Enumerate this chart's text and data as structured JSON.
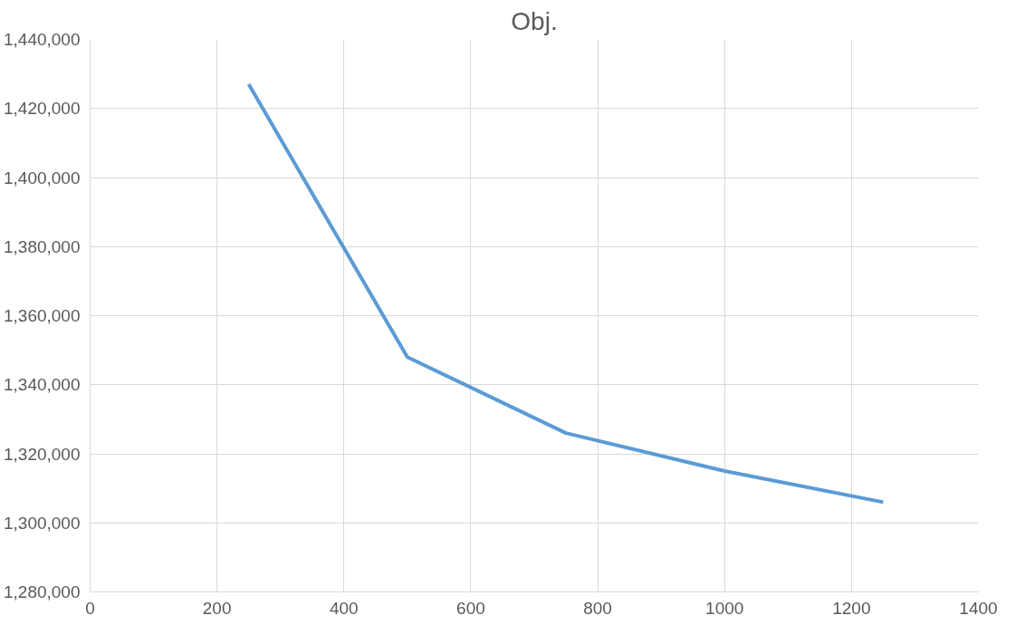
{
  "chart_data": {
    "type": "line",
    "title": "Obj.",
    "x": [
      250,
      500,
      750,
      1000,
      1250
    ],
    "series": [
      {
        "color": "#5b9bd5",
        "values": [
          1427000,
          1348000,
          1326000,
          1315000,
          1306000
        ]
      }
    ],
    "xlim": [
      0,
      1400
    ],
    "xticks": [
      0,
      200,
      400,
      600,
      800,
      1000,
      1200,
      1400
    ],
    "ylim": [
      1280000,
      1440000
    ],
    "yticks": [
      {
        "value": 1280000,
        "label": "1,280,000"
      },
      {
        "value": 1300000,
        "label": "1,300,000"
      },
      {
        "value": 1320000,
        "label": "1,320,000"
      },
      {
        "value": 1340000,
        "label": "1,340,000"
      },
      {
        "value": 1360000,
        "label": "1,360,000"
      },
      {
        "value": 1380000,
        "label": "1,380,000"
      },
      {
        "value": 1400000,
        "label": "1,400,000"
      },
      {
        "value": 1420000,
        "label": "1,420,000"
      },
      {
        "value": 1440000,
        "label": "1,440,000"
      }
    ],
    "grid": true,
    "marker": "none",
    "line_style": "solid"
  }
}
